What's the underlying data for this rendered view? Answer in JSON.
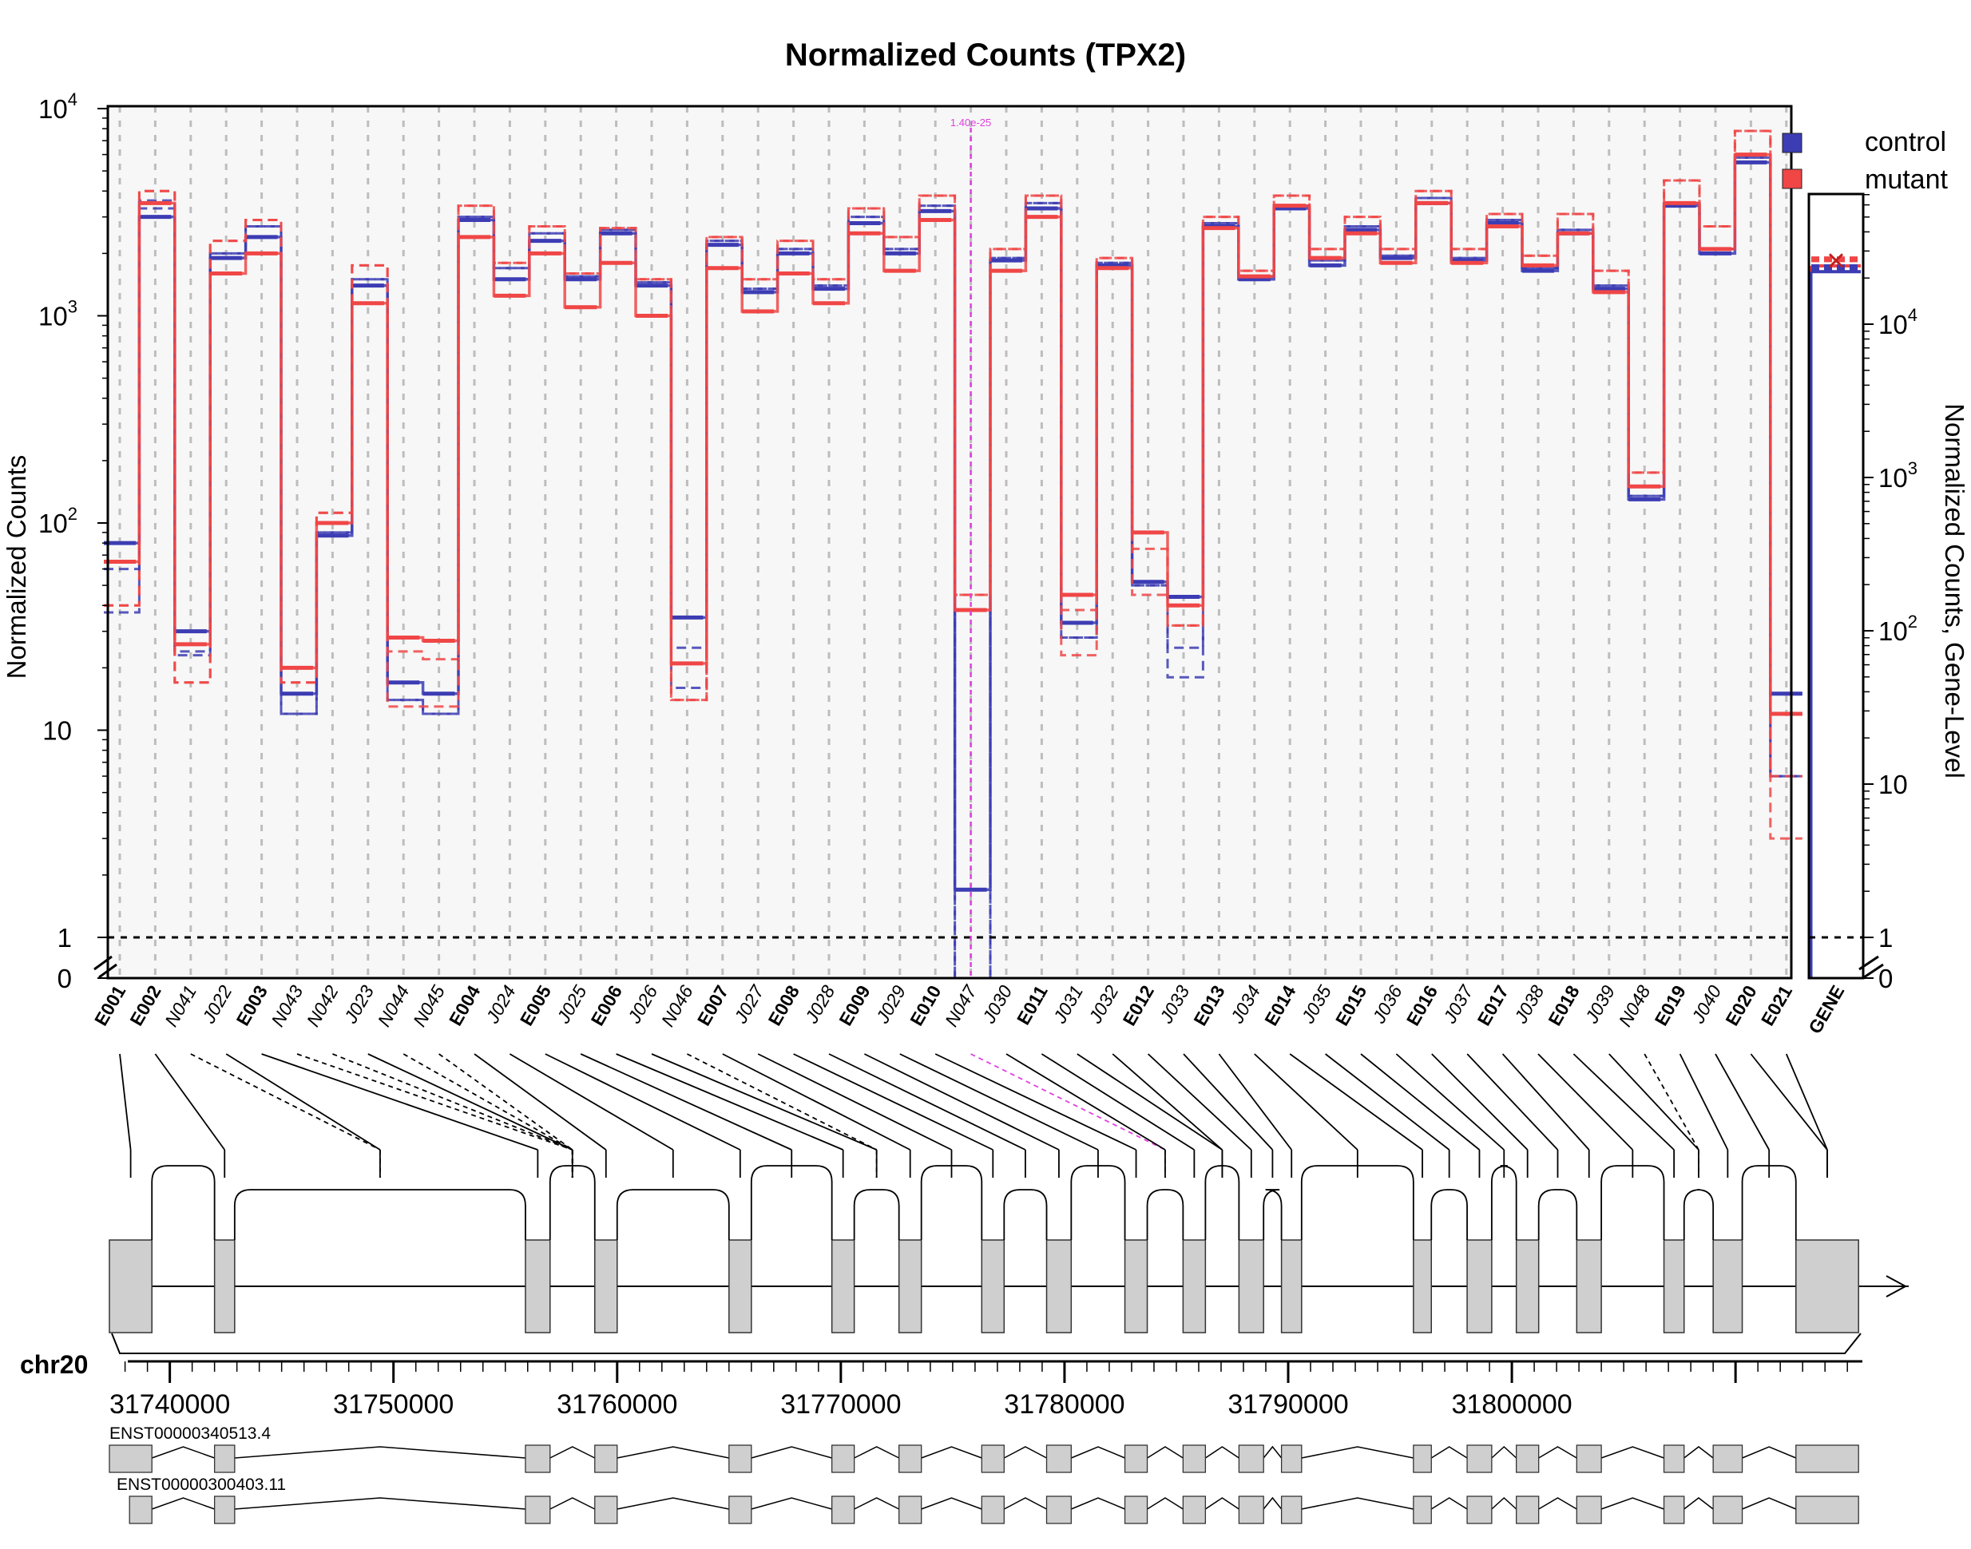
{
  "chart_data": {
    "type": "line",
    "title": "Normalized Counts (TPX2)",
    "ylabel": "Normalized Counts",
    "ylabel_right": "Normalized Counts, Gene-Level",
    "scale": "log",
    "ylim": [
      0,
      10000
    ],
    "y_ticks": [
      "0",
      "1",
      "10",
      "10^2",
      "10^3",
      "10^4"
    ],
    "gene_y_ticks": [
      "0",
      "1",
      "10",
      "10^2",
      "10^3",
      "10^4"
    ],
    "grid": true,
    "legend_position": "top-right",
    "series": [
      {
        "name": "control",
        "color": "#3c3cb4"
      },
      {
        "name": "mutant",
        "color": "#f04646"
      }
    ],
    "features": [
      {
        "id": "E001",
        "kind": "exon",
        "control": [
          80,
          60,
          37
        ],
        "mutant": [
          65,
          40
        ]
      },
      {
        "id": "E002",
        "kind": "exon",
        "control": [
          3000,
          3300,
          3600
        ],
        "mutant": [
          3500,
          4000
        ]
      },
      {
        "id": "N041",
        "kind": "novel",
        "control": [
          30,
          24,
          23
        ],
        "mutant": [
          26,
          17
        ]
      },
      {
        "id": "J022",
        "kind": "junction",
        "control": [
          1900,
          2000
        ],
        "mutant": [
          1600,
          2300
        ]
      },
      {
        "id": "E003",
        "kind": "exon",
        "control": [
          2400,
          2700
        ],
        "mutant": [
          2000,
          2900
        ]
      },
      {
        "id": "N043",
        "kind": "novel",
        "control": [
          15,
          12
        ],
        "mutant": [
          20,
          17
        ]
      },
      {
        "id": "N042",
        "kind": "novel",
        "control": [
          87,
          90
        ],
        "mutant": [
          100,
          112
        ]
      },
      {
        "id": "J023",
        "kind": "junction",
        "control": [
          1400,
          1500
        ],
        "mutant": [
          1150,
          1750
        ]
      },
      {
        "id": "N044",
        "kind": "novel",
        "control": [
          17,
          14
        ],
        "mutant": [
          28,
          24,
          13
        ]
      },
      {
        "id": "N045",
        "kind": "novel",
        "control": [
          15,
          12
        ],
        "mutant": [
          27,
          22,
          13
        ]
      },
      {
        "id": "E004",
        "kind": "exon",
        "control": [
          2900,
          3000
        ],
        "mutant": [
          2400,
          3400
        ]
      },
      {
        "id": "J024",
        "kind": "junction",
        "control": [
          1500,
          1700
        ],
        "mutant": [
          1250,
          1800
        ]
      },
      {
        "id": "E005",
        "kind": "exon",
        "control": [
          2300,
          2500
        ],
        "mutant": [
          2000,
          2700
        ]
      },
      {
        "id": "J025",
        "kind": "junction",
        "control": [
          1500,
          1550
        ],
        "mutant": [
          1100,
          1600
        ]
      },
      {
        "id": "E006",
        "kind": "exon",
        "control": [
          2500,
          2600
        ],
        "mutant": [
          1800,
          2650
        ]
      },
      {
        "id": "J026",
        "kind": "junction",
        "control": [
          1400,
          1450
        ],
        "mutant": [
          1000,
          1500
        ]
      },
      {
        "id": "N046",
        "kind": "novel",
        "control": [
          35,
          25,
          16
        ],
        "mutant": [
          21,
          14
        ]
      },
      {
        "id": "E007",
        "kind": "exon",
        "control": [
          2200,
          2300
        ],
        "mutant": [
          1700,
          2400
        ]
      },
      {
        "id": "J027",
        "kind": "junction",
        "control": [
          1300,
          1350
        ],
        "mutant": [
          1050,
          1500
        ]
      },
      {
        "id": "E008",
        "kind": "exon",
        "control": [
          2000,
          2100
        ],
        "mutant": [
          1600,
          2300
        ]
      },
      {
        "id": "J028",
        "kind": "junction",
        "control": [
          1350,
          1400
        ],
        "mutant": [
          1150,
          1500
        ]
      },
      {
        "id": "E009",
        "kind": "exon",
        "control": [
          2800,
          3000
        ],
        "mutant": [
          2500,
          3300
        ]
      },
      {
        "id": "J029",
        "kind": "junction",
        "control": [
          2000,
          2100
        ],
        "mutant": [
          1650,
          2400
        ]
      },
      {
        "id": "E010",
        "kind": "exon",
        "control": [
          3200,
          3400
        ],
        "mutant": [
          2900,
          3800
        ]
      },
      {
        "id": "N047",
        "kind": "novel",
        "control": [
          1.7,
          0
        ],
        "mutant": [
          38,
          45
        ]
      },
      {
        "id": "J030",
        "kind": "junction",
        "control": [
          1850,
          1900
        ],
        "mutant": [
          1650,
          2100
        ]
      },
      {
        "id": "E011",
        "kind": "exon",
        "control": [
          3300,
          3500
        ],
        "mutant": [
          3000,
          3800
        ]
      },
      {
        "id": "J031",
        "kind": "junction",
        "control": [
          33,
          28
        ],
        "mutant": [
          45,
          38,
          23
        ]
      },
      {
        "id": "J032",
        "kind": "junction",
        "control": [
          1750,
          1800
        ],
        "mutant": [
          1700,
          1900
        ]
      },
      {
        "id": "E012",
        "kind": "exon",
        "control": [
          52,
          50
        ],
        "mutant": [
          90,
          75,
          45
        ]
      },
      {
        "id": "J033",
        "kind": "junction",
        "control": [
          44,
          25,
          18
        ],
        "mutant": [
          40,
          32
        ]
      },
      {
        "id": "E013",
        "kind": "exon",
        "control": [
          2700,
          2800
        ],
        "mutant": [
          2650,
          3000
        ]
      },
      {
        "id": "J034",
        "kind": "junction",
        "control": [
          1500,
          1550
        ],
        "mutant": [
          1550,
          1650
        ]
      },
      {
        "id": "E014",
        "kind": "exon",
        "control": [
          3300,
          3400
        ],
        "mutant": [
          3400,
          3800
        ]
      },
      {
        "id": "J035",
        "kind": "junction",
        "control": [
          1750,
          1850
        ],
        "mutant": [
          1900,
          2100
        ]
      },
      {
        "id": "E015",
        "kind": "exon",
        "control": [
          2600,
          2700
        ],
        "mutant": [
          2500,
          3000
        ]
      },
      {
        "id": "J036",
        "kind": "junction",
        "control": [
          1900,
          1950
        ],
        "mutant": [
          1800,
          2100
        ]
      },
      {
        "id": "E016",
        "kind": "exon",
        "control": [
          3500,
          3700
        ],
        "mutant": [
          3500,
          4000
        ]
      },
      {
        "id": "J037",
        "kind": "junction",
        "control": [
          1850,
          1900
        ],
        "mutant": [
          1800,
          2100
        ]
      },
      {
        "id": "E017",
        "kind": "exon",
        "control": [
          2800,
          2900
        ],
        "mutant": [
          2700,
          3100
        ]
      },
      {
        "id": "J038",
        "kind": "junction",
        "control": [
          1650,
          1700
        ],
        "mutant": [
          1750,
          1950
        ]
      },
      {
        "id": "E018",
        "kind": "exon",
        "control": [
          2500,
          2600
        ],
        "mutant": [
          2500,
          3100
        ]
      },
      {
        "id": "J039",
        "kind": "junction",
        "control": [
          1350,
          1400
        ],
        "mutant": [
          1300,
          1650
        ]
      },
      {
        "id": "N048",
        "kind": "novel",
        "control": [
          130,
          135
        ],
        "mutant": [
          150,
          175
        ]
      },
      {
        "id": "E019",
        "kind": "exon",
        "control": [
          3400,
          3500
        ],
        "mutant": [
          3500,
          4500
        ]
      },
      {
        "id": "J040",
        "kind": "junction",
        "control": [
          2000,
          2100
        ],
        "mutant": [
          2100,
          2700
        ]
      },
      {
        "id": "E020",
        "kind": "exon",
        "control": [
          5500,
          5800
        ],
        "mutant": [
          6000,
          7800
        ]
      },
      {
        "id": "E021",
        "kind": "exon",
        "control": [
          15,
          6
        ],
        "mutant": [
          12,
          6,
          3
        ]
      }
    ],
    "gene_level": {
      "label": "GENE",
      "control": [
        22000,
        23000,
        24000
      ],
      "mutant": [
        24000,
        26000,
        27000
      ],
      "marker": "x"
    },
    "annotation": {
      "feature": "N047",
      "text": "1.40e-25",
      "color": "#e040e0"
    }
  },
  "genome": {
    "chrom": "chr20",
    "ticks": [
      "31740000",
      "31750000",
      "31760000",
      "31770000",
      "31780000",
      "31790000",
      "31800000"
    ],
    "tick_values": [
      31740000,
      31750000,
      31760000,
      31770000,
      31780000,
      31790000,
      31800000
    ],
    "exons": [
      {
        "start": 31737300,
        "end": 31739200
      },
      {
        "start": 31742000,
        "end": 31742900
      },
      {
        "start": 31755900,
        "end": 31757000
      },
      {
        "start": 31759000,
        "end": 31760000
      },
      {
        "start": 31765000,
        "end": 31766000
      },
      {
        "start": 31769600,
        "end": 31770600
      },
      {
        "start": 31772600,
        "end": 31773600
      },
      {
        "start": 31776300,
        "end": 31777300
      },
      {
        "start": 31779200,
        "end": 31780300
      },
      {
        "start": 31782700,
        "end": 31783700
      },
      {
        "start": 31785300,
        "end": 31786300
      },
      {
        "start": 31787800,
        "end": 31788900
      },
      {
        "start": 31789700,
        "end": 31790600
      },
      {
        "start": 31795600,
        "end": 31796400
      },
      {
        "start": 31798000,
        "end": 31799100
      },
      {
        "start": 31800200,
        "end": 31801200
      },
      {
        "start": 31802900,
        "end": 31804000
      },
      {
        "start": 31806800,
        "end": 31807700
      },
      {
        "start": 31809000,
        "end": 31810300
      },
      {
        "start": 31812700,
        "end": 31815500
      }
    ],
    "transcripts": [
      {
        "name": "ENST00000340513.4"
      },
      {
        "name": "ENST00000300403.11"
      }
    ]
  }
}
